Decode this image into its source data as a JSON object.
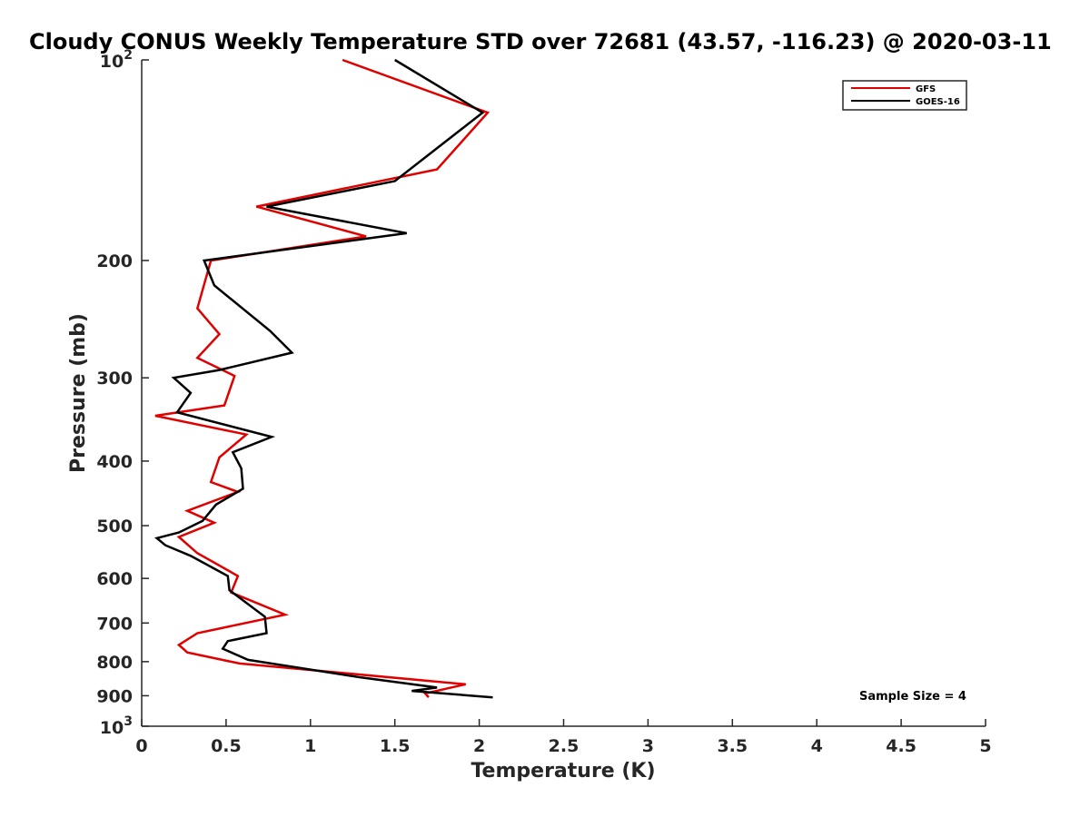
{
  "chart_data": {
    "type": "line",
    "title": "Cloudy CONUS Weekly Temperature STD over 72681 (43.57, -116.23) @ 2020-03-11",
    "xlabel": "Temperature (K)",
    "ylabel": "Pressure (mb)",
    "xlim": [
      0,
      5
    ],
    "ylim": [
      100,
      1000
    ],
    "y_scale": "log",
    "y_reversed": true,
    "x_ticks": [
      "0",
      "0.5",
      "1",
      "1.5",
      "2",
      "2.5",
      "3",
      "3.5",
      "4",
      "4.5",
      "5"
    ],
    "y_ticks": [
      {
        "value": 200,
        "label": "200"
      },
      {
        "value": 300,
        "label": "300"
      },
      {
        "value": 400,
        "label": "400"
      },
      {
        "value": 500,
        "label": "500"
      },
      {
        "value": 600,
        "label": "600"
      },
      {
        "value": 700,
        "label": "700"
      },
      {
        "value": 800,
        "label": "800"
      },
      {
        "value": 900,
        "label": "900"
      }
    ],
    "y_tick_power_labels": [
      {
        "value": 100,
        "base": "10",
        "exp": "2"
      },
      {
        "value": 1000,
        "base": "10",
        "exp": "3"
      }
    ],
    "grid": false,
    "legend_position": "top-right",
    "series": [
      {
        "name": "GFS",
        "color": "#e00000",
        "x": [
          1.19,
          2.05,
          1.75,
          0.68,
          1.33,
          0.41,
          0.33,
          0.46,
          0.33,
          0.55,
          0.49,
          0.08,
          0.62,
          0.46,
          0.41,
          0.57,
          0.27,
          0.43,
          0.22,
          0.33,
          0.57,
          0.53,
          0.85,
          0.33,
          0.22,
          0.27,
          0.58,
          1.92,
          1.68,
          1.7
        ],
        "y": [
          100,
          120,
          146,
          166,
          184,
          200,
          236,
          258,
          280,
          298,
          330,
          342,
          365,
          395,
          430,
          445,
          475,
          495,
          520,
          550,
          595,
          630,
          680,
          725,
          755,
          775,
          805,
          865,
          893,
          905
        ]
      },
      {
        "name": "GOES-16",
        "color": "#000000",
        "x": [
          1.5,
          2.02,
          1.5,
          0.74,
          1.57,
          0.37,
          0.43,
          0.76,
          0.89,
          0.46,
          0.19,
          0.29,
          0.21,
          0.77,
          0.54,
          0.59,
          0.6,
          0.44,
          0.36,
          0.22,
          0.09,
          0.14,
          0.29,
          0.51,
          0.52,
          0.73,
          0.74,
          0.51,
          0.48,
          0.63,
          1.3,
          1.75,
          1.6,
          2.08
        ],
        "y": [
          100,
          120,
          152,
          166,
          182,
          200,
          218,
          255,
          275,
          292,
          300,
          316,
          338,
          368,
          388,
          410,
          440,
          465,
          492,
          512,
          522,
          535,
          555,
          595,
          625,
          685,
          725,
          745,
          765,
          795,
          845,
          875,
          885,
          905
        ]
      }
    ],
    "annotation": "Sample Size = 4"
  }
}
